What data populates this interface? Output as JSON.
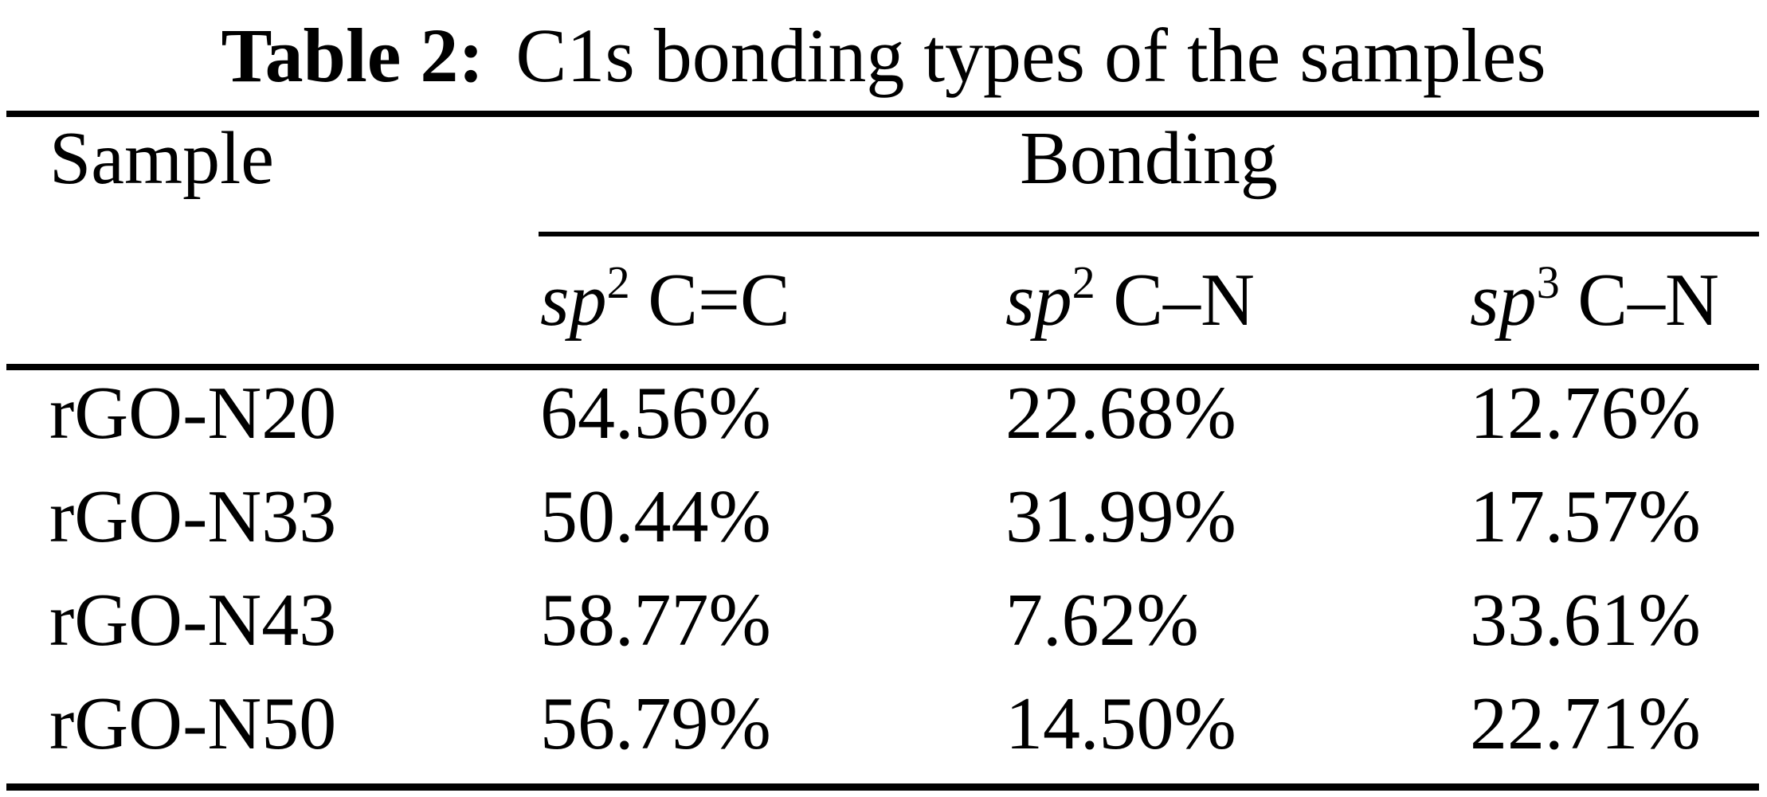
{
  "page": {
    "background_color": "#ffffff",
    "text_color": "#000000"
  },
  "caption": {
    "label": "Table 2:",
    "text": "C1s bonding types of the samples"
  },
  "table": {
    "sample_header": "Sample",
    "group_header": "Bonding",
    "sub_headers": [
      {
        "base": "sp",
        "sup": "2",
        "bond": "C=C"
      },
      {
        "base": "sp",
        "sup": "2",
        "bond": "C–N"
      },
      {
        "base": "sp",
        "sup": "3",
        "bond": "C–N"
      }
    ],
    "rows": [
      {
        "sample": "rGO-N20",
        "values": [
          "64.56%",
          "22.68%",
          "12.76%"
        ]
      },
      {
        "sample": "rGO-N33",
        "values": [
          "50.44%",
          "31.99%",
          "17.57%"
        ]
      },
      {
        "sample": "rGO-N43",
        "values": [
          "58.77%",
          "7.62%",
          "33.61%"
        ]
      },
      {
        "sample": "rGO-N50",
        "values": [
          "56.79%",
          "14.50%",
          "22.71%"
        ]
      }
    ]
  }
}
